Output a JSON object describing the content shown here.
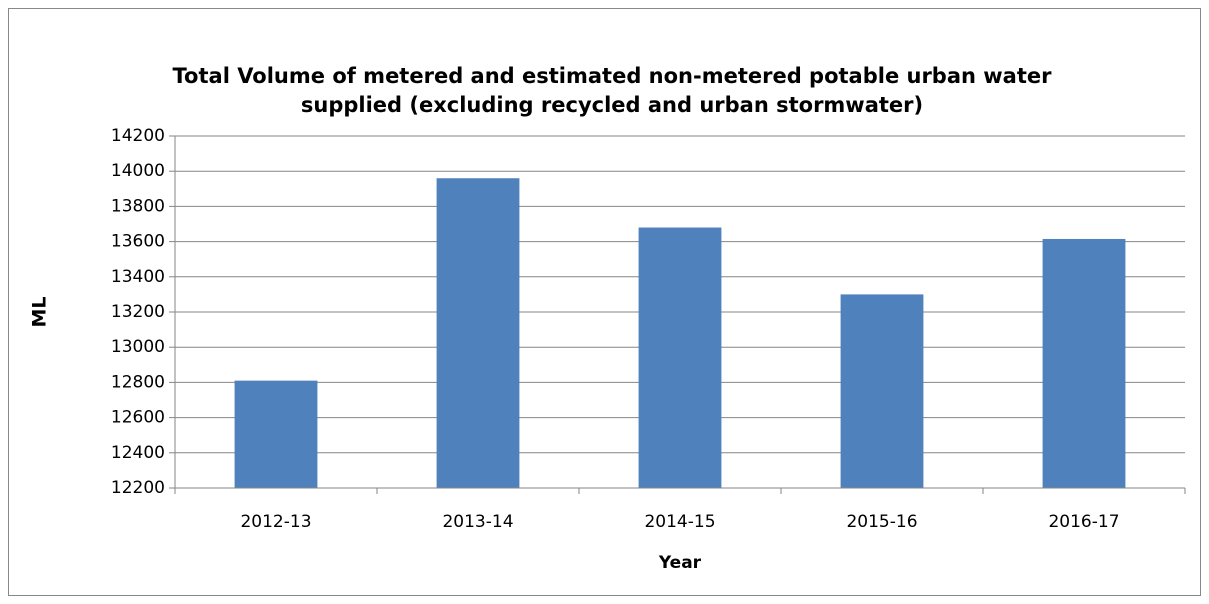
{
  "chart_data": {
    "type": "bar",
    "title": "Total Volume of metered and estimated non-metered potable urban water supplied (excluding recycled and urban stormwater)",
    "x_label": "Year",
    "y_label": "ML",
    "categories": [
      "2012-13",
      "2013-14",
      "2014-15",
      "2015-16",
      "2016-17"
    ],
    "values": [
      12810,
      13960,
      13680,
      13300,
      13615
    ],
    "color": "#4f81bd",
    "ylim": [
      12200,
      14200
    ],
    "yticks": [
      12200,
      12400,
      12600,
      12800,
      13000,
      13200,
      13400,
      13600,
      13800,
      14000,
      14200
    ],
    "grid": true
  }
}
